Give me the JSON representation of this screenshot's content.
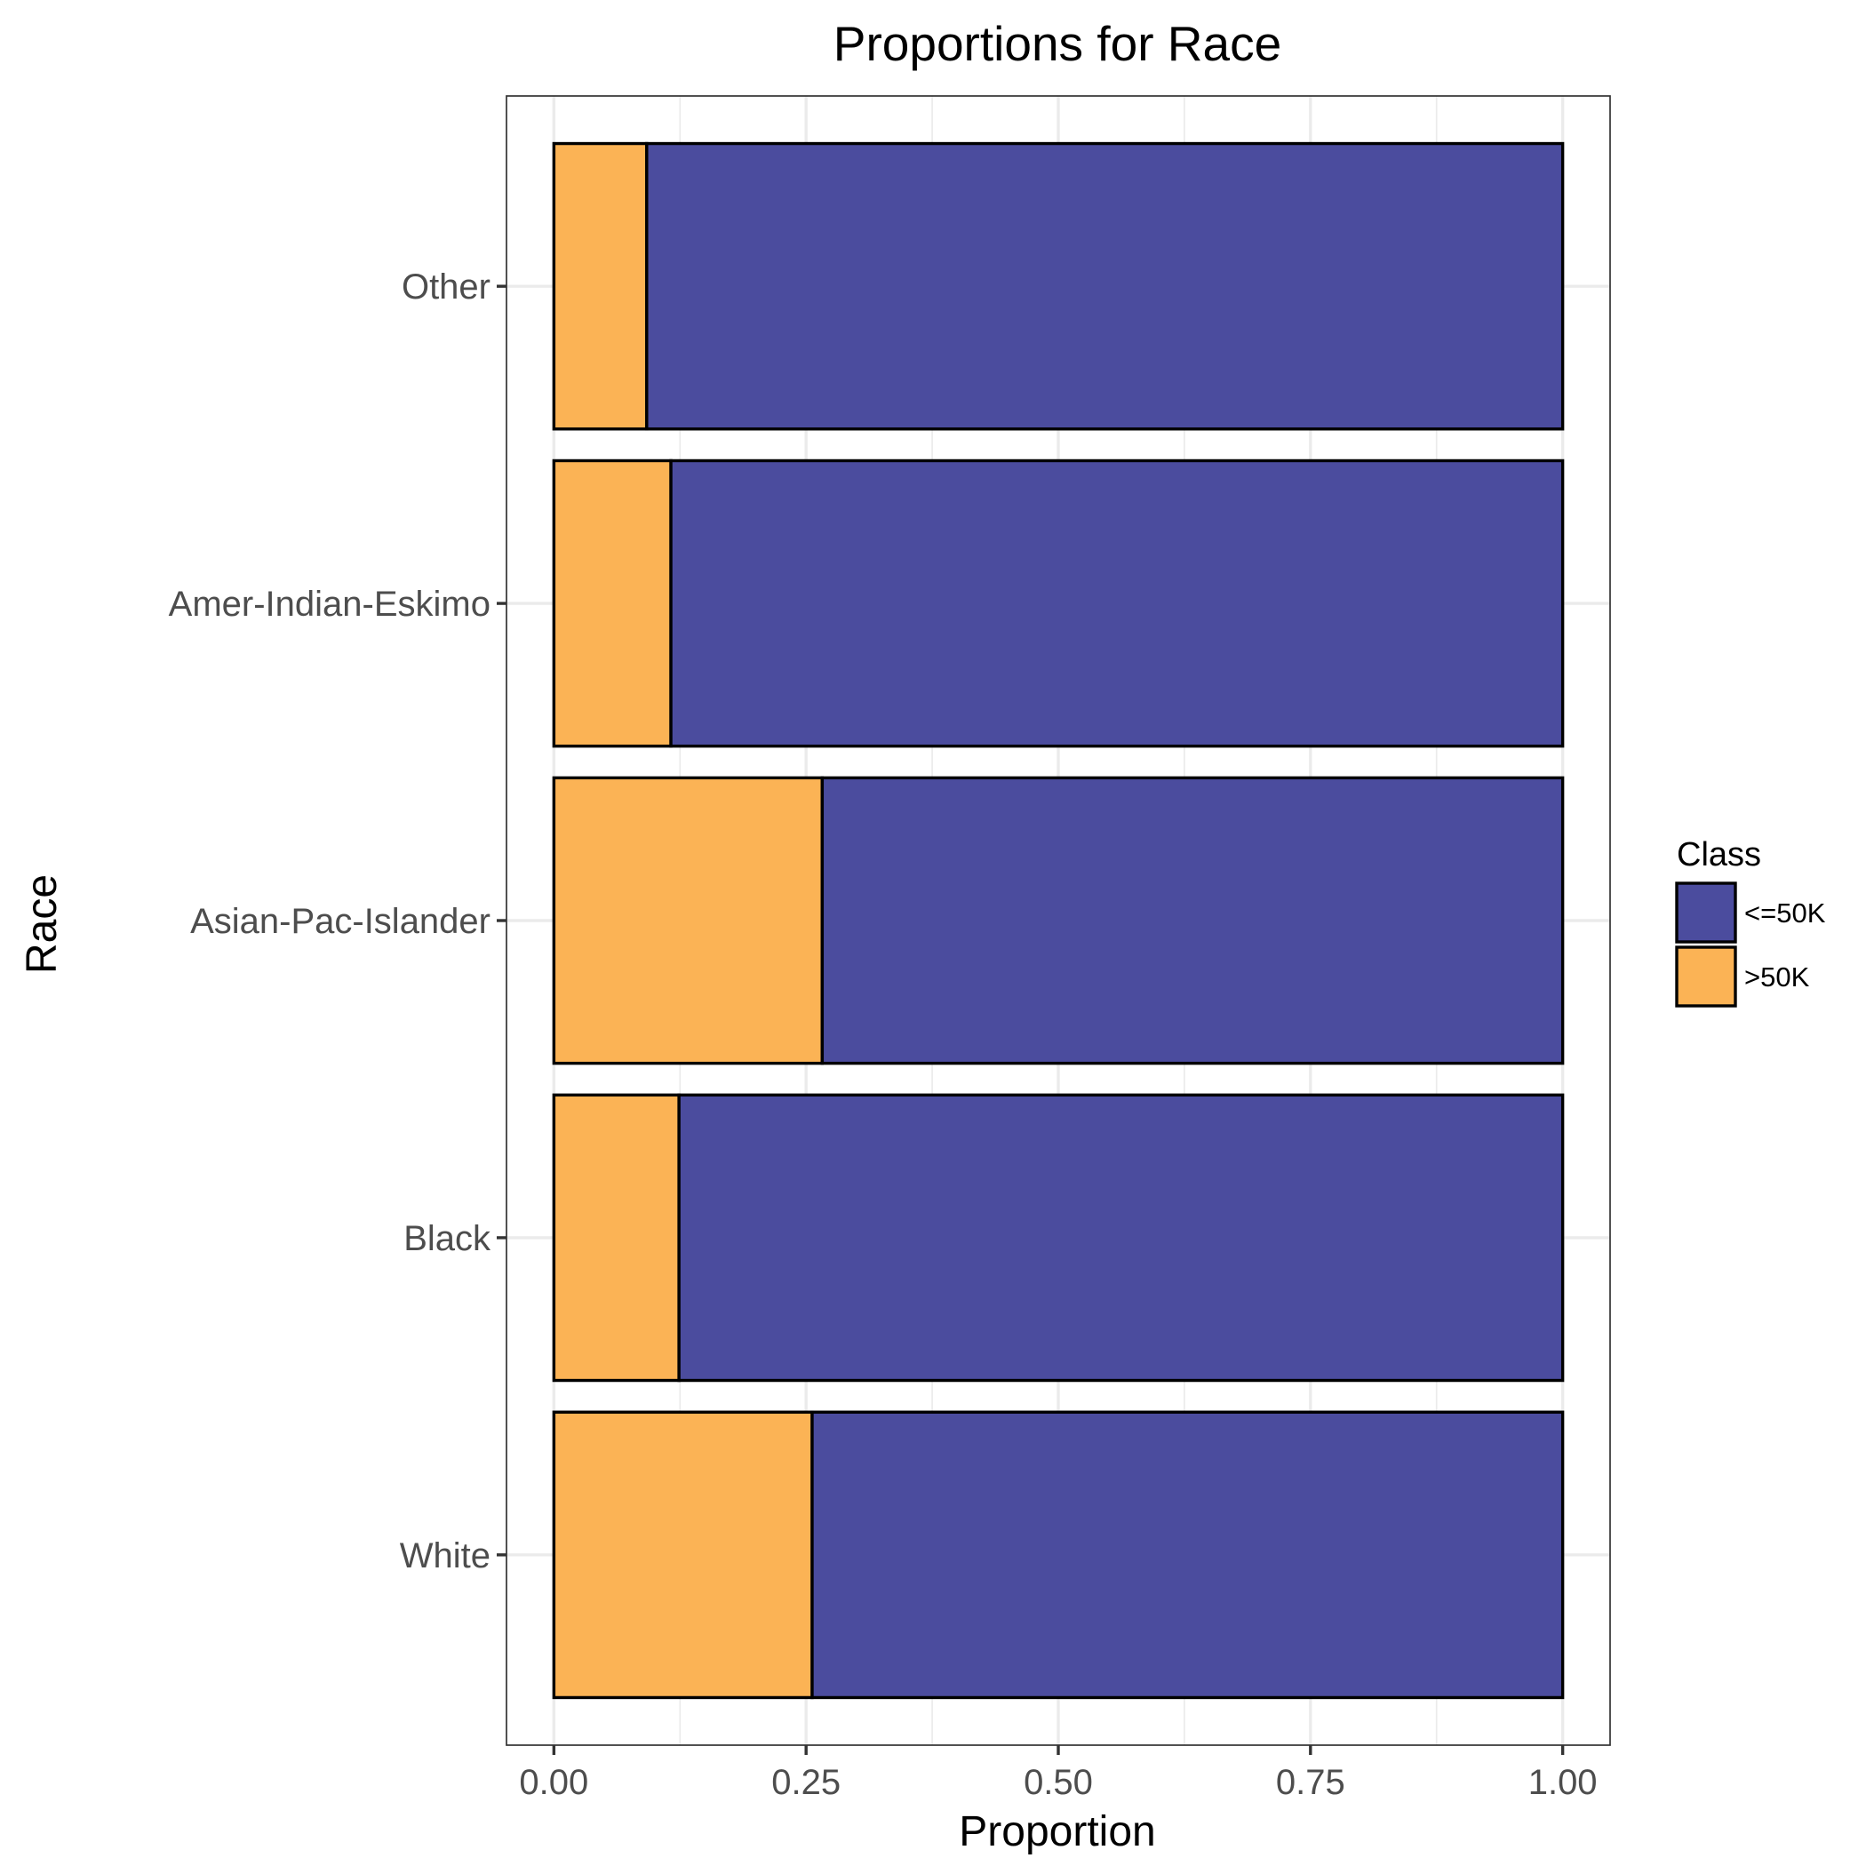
{
  "chart_data": {
    "type": "bar",
    "orientation": "horizontal",
    "stacked": true,
    "title": "Proportions for Race",
    "xlabel": "Proportion",
    "ylabel": "Race",
    "xlim": [
      -0.047,
      1.047
    ],
    "xticks": [
      0,
      0.25,
      0.5,
      0.75,
      1
    ],
    "xtick_labels": [
      "0.00",
      "0.25",
      "0.50",
      "0.75",
      "1.00"
    ],
    "categories": [
      "White",
      "Black",
      "Asian-Pac-Islander",
      "Amer-Indian-Eskimo",
      "Other"
    ],
    "series": [
      {
        "name": ">50K",
        "color": "#fbb355",
        "values": [
          0.256,
          0.124,
          0.266,
          0.116,
          0.092
        ]
      },
      {
        "name": "<=50K",
        "color": "#4b4c9e",
        "values": [
          0.744,
          0.876,
          0.734,
          0.884,
          0.908
        ]
      }
    ],
    "legend": {
      "title": "Class",
      "position": "right",
      "entries": [
        {
          "label": "<=50K",
          "color": "#4b4c9e"
        },
        {
          "label": ">50K",
          "color": "#fbb355"
        }
      ]
    },
    "grid": true
  }
}
